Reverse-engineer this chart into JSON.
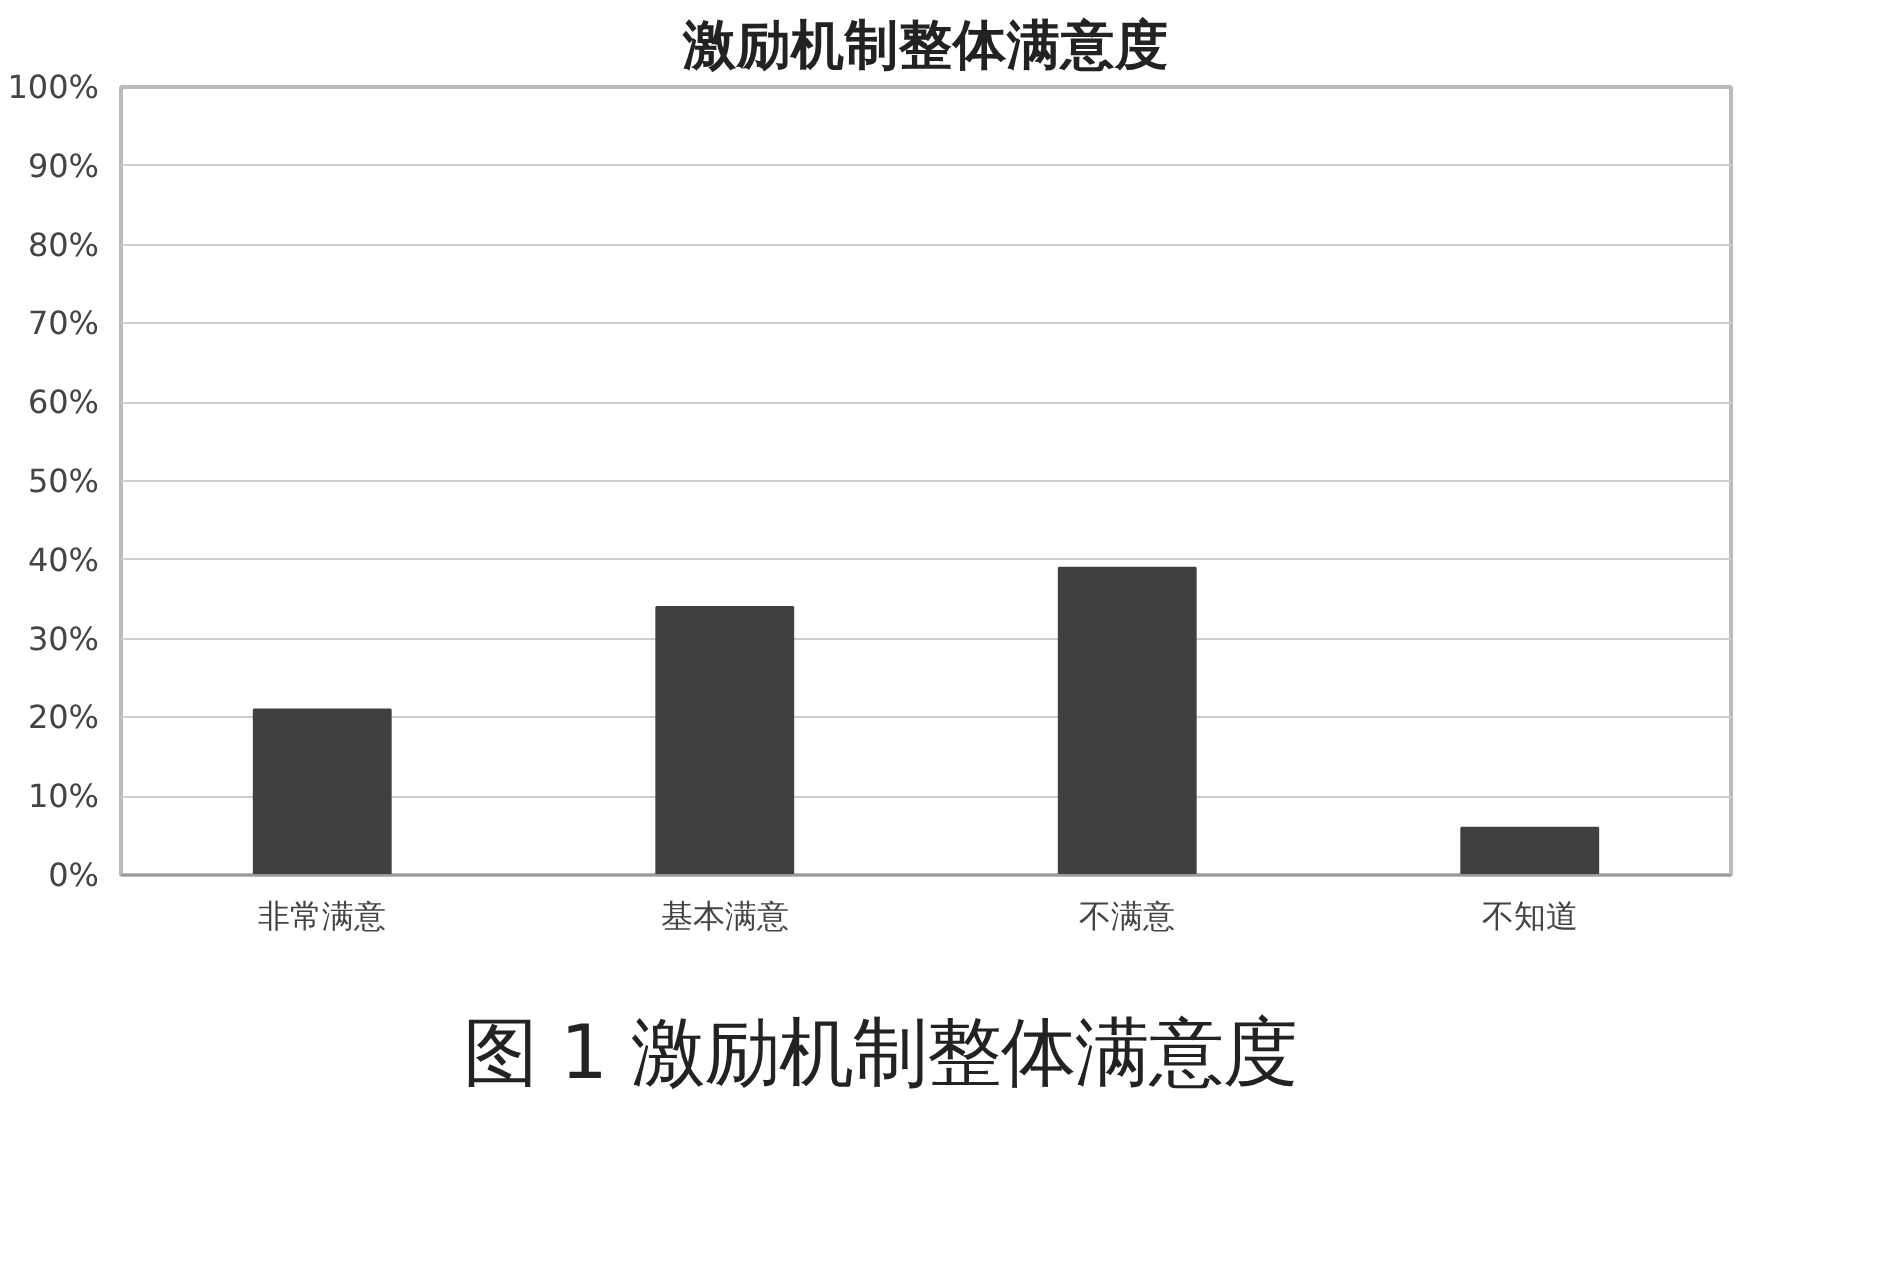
{
  "chart_data": {
    "type": "bar",
    "title": "激励机制整体满意度",
    "categories": [
      "非常满意",
      "基本满意",
      "不满意",
      "不知道"
    ],
    "values": [
      21,
      34,
      39,
      6
    ],
    "color": "#404040",
    "ylim": [
      0,
      100
    ],
    "yticks": [
      {
        "value": 0,
        "label": "0%"
      },
      {
        "value": 10,
        "label": "10%"
      },
      {
        "value": 20,
        "label": "20%"
      },
      {
        "value": 30,
        "label": "30%"
      },
      {
        "value": 40,
        "label": "40%"
      },
      {
        "value": 50,
        "label": "50%"
      },
      {
        "value": 60,
        "label": "60%"
      },
      {
        "value": 70,
        "label": "70%"
      },
      {
        "value": 80,
        "label": "80%"
      },
      {
        "value": 90,
        "label": "90%"
      },
      {
        "value": 100,
        "label": "100%"
      }
    ],
    "grid": "y",
    "annotations": [
      "图 1  激励机制整体满意度"
    ]
  }
}
